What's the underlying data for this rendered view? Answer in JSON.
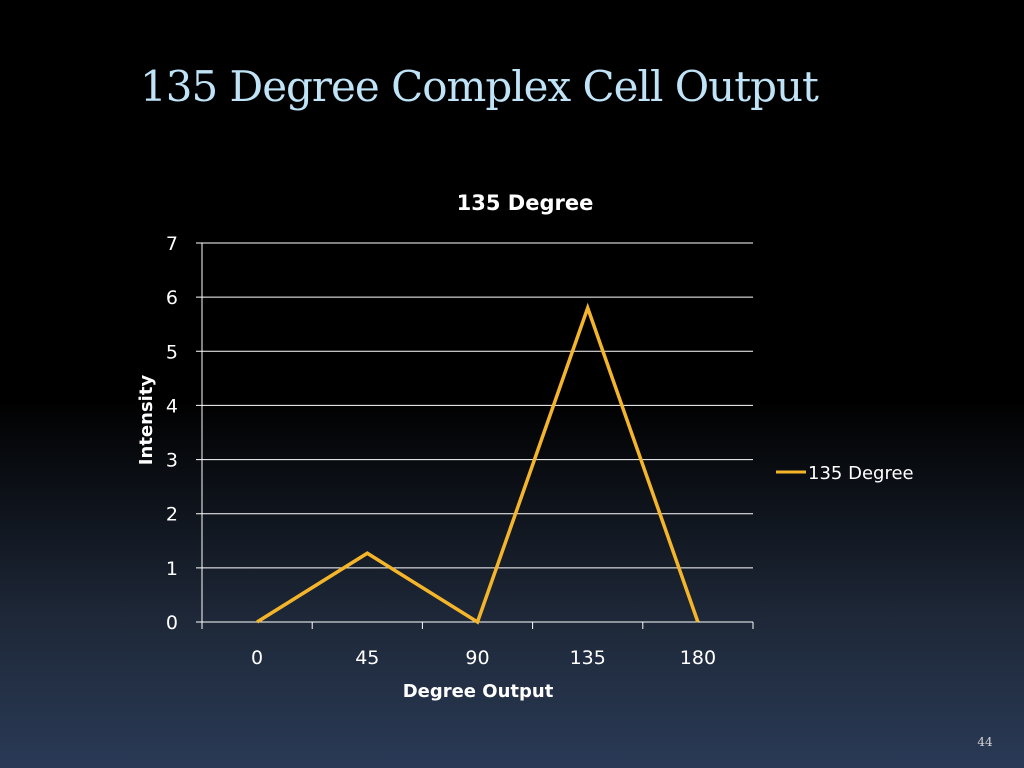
{
  "slide": {
    "title": "135 Degree Complex Cell Output",
    "page_number": "44"
  },
  "chart_data": {
    "type": "line",
    "title": "135 Degree",
    "xlabel": "Degree Output",
    "ylabel": "Intensity",
    "categories": [
      "0",
      "45",
      "90",
      "135",
      "180"
    ],
    "series": [
      {
        "name": "135 Degree",
        "values": [
          0,
          1.27,
          0,
          5.8,
          0
        ]
      }
    ],
    "ylim": [
      0,
      7
    ],
    "yticks": [
      "0",
      "1",
      "2",
      "3",
      "4",
      "5",
      "6",
      "7"
    ],
    "grid": true,
    "legend": "right",
    "colors": {
      "series": "#f5b52a",
      "grid": "#ffffff",
      "text": "#ffffff"
    }
  }
}
